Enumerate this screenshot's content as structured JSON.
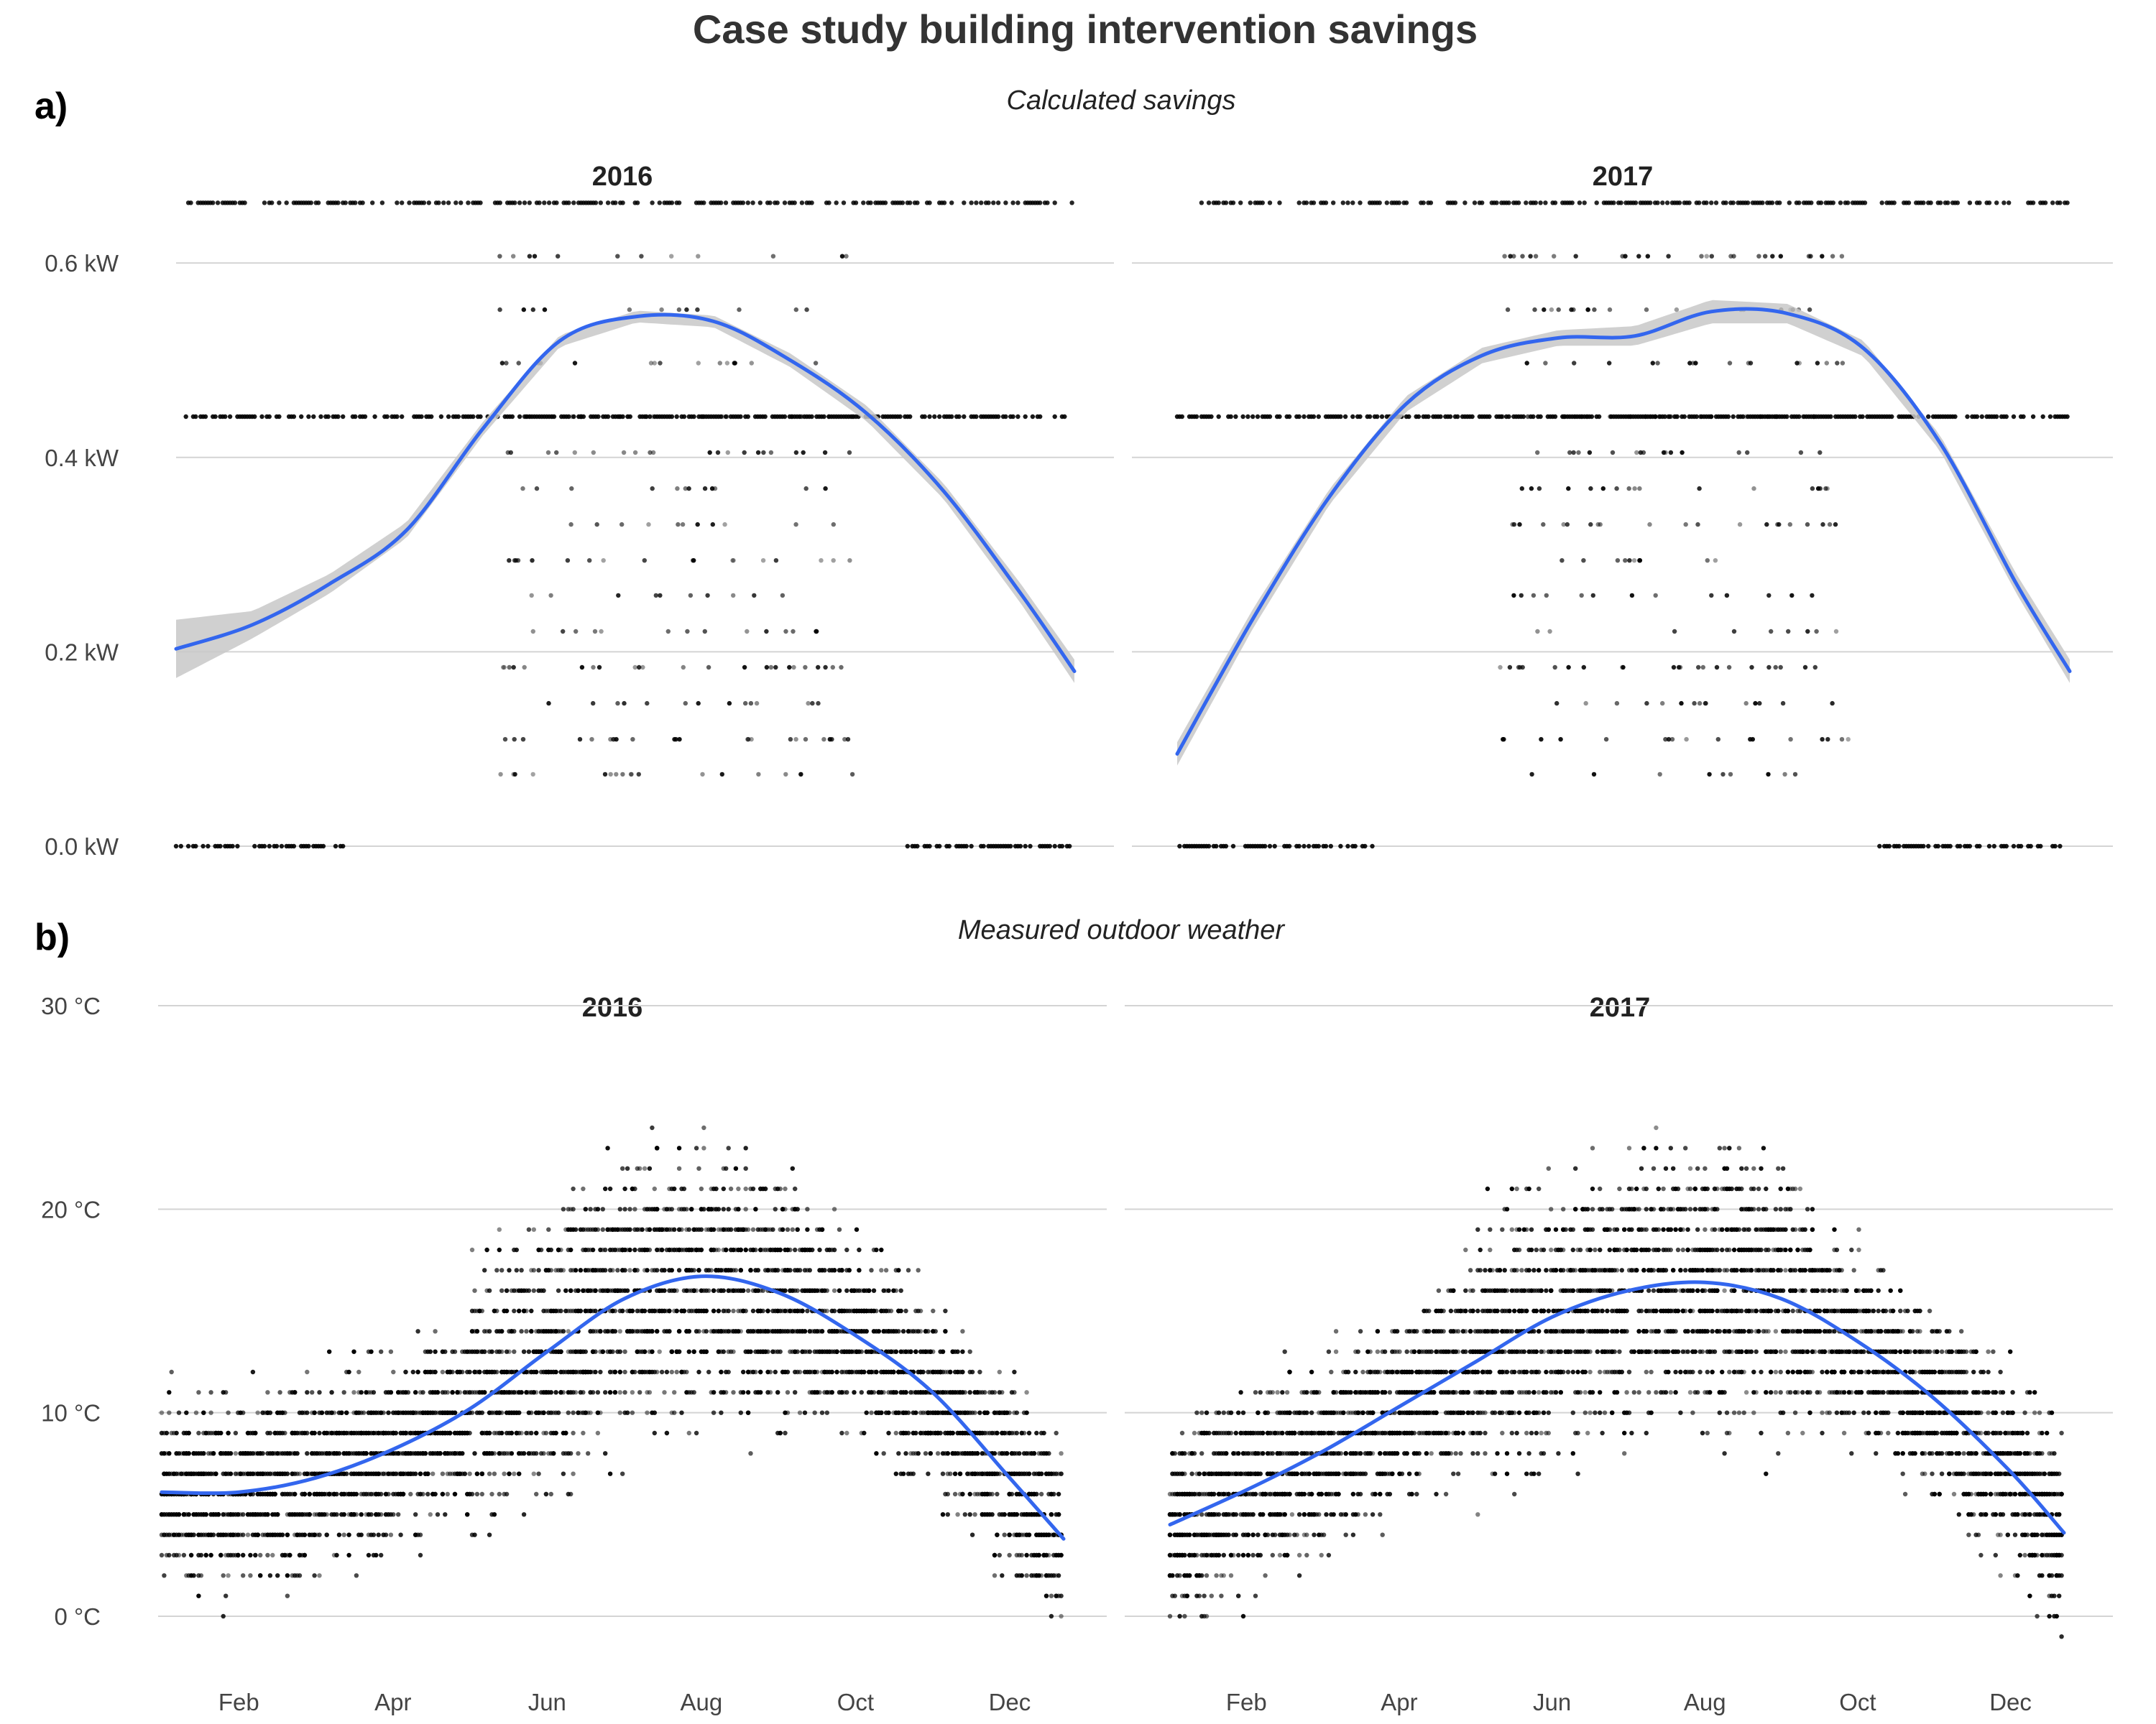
{
  "figure": {
    "title": "Case study building intervention savings",
    "panel_a_tag": "a)",
    "panel_b_tag": "b)",
    "panel_a_subtitle": "Calculated savings",
    "panel_b_subtitle": "Measured outdoor weather"
  },
  "colors": {
    "smooth_line": "#3366ee",
    "ribbon": "#c8c8c8",
    "points": "#000000",
    "grid": "#d4d4d4"
  },
  "chart_data": [
    {
      "id": "savings",
      "type": "scatter",
      "title": "Calculated savings",
      "facets": [
        "2016",
        "2017"
      ],
      "xlabel": "",
      "ylabel": "",
      "x_unit": "month",
      "xlim": [
        1,
        12.7
      ],
      "ylim": [
        0,
        0.66
      ],
      "y_ticks": [
        0,
        0.2,
        0.4,
        0.6
      ],
      "y_tick_labels": [
        "0.0 kW",
        "0.2 kW",
        "0.4 kW",
        "0.6 kW"
      ],
      "grid": true,
      "levels": [
        0,
        0.074,
        0.11,
        0.147,
        0.184,
        0.221,
        0.258,
        0.294,
        0.331,
        0.368,
        0.405,
        0.442,
        0.497,
        0.552,
        0.607,
        0.662
      ],
      "smooth": {
        "2016": {
          "x": [
            1,
            2,
            3,
            4,
            5,
            6,
            7,
            8,
            9,
            10,
            11,
            12,
            12.7
          ],
          "y": [
            0.203,
            0.228,
            0.27,
            0.325,
            0.43,
            0.52,
            0.545,
            0.54,
            0.5,
            0.445,
            0.365,
            0.26,
            0.18
          ],
          "band": [
            0.03,
            0.014,
            0.01,
            0.008,
            0.007,
            0.006,
            0.006,
            0.006,
            0.007,
            0.008,
            0.008,
            0.01,
            0.012
          ]
        },
        "2017": {
          "x": [
            1,
            2,
            3,
            4,
            5,
            6,
            7,
            8,
            9,
            10,
            11,
            12,
            12.7
          ],
          "y": [
            0.095,
            0.235,
            0.36,
            0.455,
            0.505,
            0.523,
            0.525,
            0.55,
            0.548,
            0.512,
            0.415,
            0.27,
            0.18
          ],
          "band": [
            0.012,
            0.01,
            0.008,
            0.008,
            0.008,
            0.008,
            0.01,
            0.012,
            0.01,
            0.008,
            0.008,
            0.01,
            0.012
          ]
        }
      }
    },
    {
      "id": "weather",
      "type": "scatter",
      "title": "Measured outdoor weather",
      "facets": [
        "2016",
        "2017"
      ],
      "xlabel": "",
      "ylabel": "",
      "x_unit": "month",
      "xlim": [
        1,
        12.7
      ],
      "ylim": [
        -3,
        30
      ],
      "y_ticks": [
        0,
        10,
        20,
        30
      ],
      "y_tick_labels": [
        "0 °C",
        "10 °C",
        "20 °C",
        "30 °C"
      ],
      "x_ticks": [
        2,
        4,
        6,
        8,
        10,
        12
      ],
      "x_tick_labels": [
        "Feb",
        "Apr",
        "Jun",
        "Aug",
        "Oct",
        "Dec"
      ],
      "grid": true,
      "smooth": {
        "2016": {
          "x": [
            1,
            2,
            3,
            4,
            5,
            6,
            7,
            8,
            9,
            10,
            11,
            12,
            12.7
          ],
          "y": [
            6.1,
            6.1,
            6.8,
            8.2,
            10.2,
            13.0,
            15.6,
            16.7,
            15.9,
            13.8,
            11.0,
            6.8,
            3.8
          ]
        },
        "2017": {
          "x": [
            1,
            2,
            3,
            4,
            5,
            6,
            7,
            8,
            9,
            10,
            11,
            12,
            12.7
          ],
          "y": [
            4.5,
            6.2,
            8.1,
            10.3,
            12.5,
            14.7,
            16.0,
            16.4,
            15.6,
            13.5,
            10.7,
            7.1,
            4.1
          ]
        }
      }
    }
  ]
}
